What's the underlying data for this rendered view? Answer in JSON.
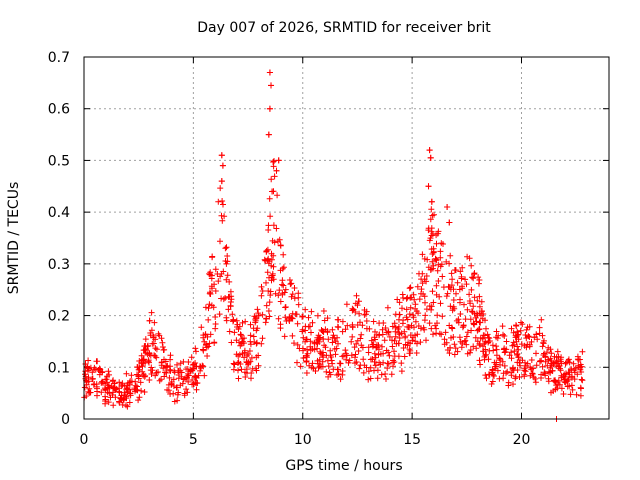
{
  "chart_data": {
    "type": "scatter",
    "title": "Day 007 of 2026, SRMTID for receiver brit",
    "xlabel": "GPS time / hours",
    "ylabel": "SRMTID / TECUs",
    "xlim": [
      0,
      24
    ],
    "ylim": [
      0,
      0.7
    ],
    "x_ticks": [
      "0",
      "5",
      "10",
      "15",
      "20"
    ],
    "y_ticks": [
      "0",
      "0.1",
      "0.2",
      "0.3",
      "0.4",
      "0.5",
      "0.6",
      "0.7"
    ],
    "grid": true,
    "marker": "+",
    "color": "#ff0000",
    "series": [
      {
        "name": "SRMTID",
        "profile_x": [
          0,
          0.3,
          0.6,
          0.9,
          1.2,
          1.5,
          1.8,
          2.2,
          2.6,
          2.9,
          3.1,
          3.4,
          3.7,
          4.0,
          4.4,
          4.8,
          5.1,
          5.4,
          5.7,
          6.0,
          6.2,
          6.4,
          6.6,
          6.8,
          7.1,
          7.4,
          7.7,
          8.0,
          8.3,
          8.5,
          8.7,
          8.9,
          9.1,
          9.4,
          9.7,
          10.0,
          10.5,
          11.0,
          11.5,
          12.0,
          12.5,
          13.0,
          13.5,
          14.0,
          14.5,
          15.0,
          15.3,
          15.6,
          15.8,
          16.0,
          16.2,
          16.5,
          16.8,
          17.1,
          17.4,
          17.7,
          18.0,
          18.3,
          18.6,
          19.0,
          19.5,
          20.0,
          20.5,
          21.0,
          21.3,
          21.6,
          22.0,
          22.4,
          22.8
        ],
        "profile_y": [
          0.09,
          0.085,
          0.075,
          0.065,
          0.06,
          0.055,
          0.055,
          0.06,
          0.085,
          0.12,
          0.14,
          0.12,
          0.095,
          0.08,
          0.075,
          0.08,
          0.09,
          0.13,
          0.19,
          0.26,
          0.33,
          0.3,
          0.2,
          0.15,
          0.14,
          0.14,
          0.15,
          0.16,
          0.24,
          0.33,
          0.38,
          0.3,
          0.23,
          0.2,
          0.19,
          0.15,
          0.14,
          0.14,
          0.14,
          0.15,
          0.17,
          0.14,
          0.13,
          0.15,
          0.17,
          0.19,
          0.2,
          0.25,
          0.3,
          0.28,
          0.26,
          0.23,
          0.22,
          0.21,
          0.22,
          0.22,
          0.21,
          0.14,
          0.11,
          0.12,
          0.13,
          0.13,
          0.13,
          0.13,
          0.1,
          0.09,
          0.08,
          0.08,
          0.09
        ],
        "peaks": [
          {
            "x": 3.0,
            "y": 0.19
          },
          {
            "x": 6.3,
            "y": 0.51
          },
          {
            "x": 6.35,
            "y": 0.49
          },
          {
            "x": 6.3,
            "y": 0.46
          },
          {
            "x": 8.5,
            "y": 0.67
          },
          {
            "x": 8.55,
            "y": 0.645
          },
          {
            "x": 8.5,
            "y": 0.6
          },
          {
            "x": 8.45,
            "y": 0.55
          },
          {
            "x": 8.9,
            "y": 0.5
          },
          {
            "x": 8.8,
            "y": 0.48
          },
          {
            "x": 8.6,
            "y": 0.44
          },
          {
            "x": 15.8,
            "y": 0.52
          },
          {
            "x": 15.85,
            "y": 0.505
          },
          {
            "x": 15.75,
            "y": 0.45
          },
          {
            "x": 15.9,
            "y": 0.42
          },
          {
            "x": 16.6,
            "y": 0.41
          },
          {
            "x": 16.7,
            "y": 0.38
          },
          {
            "x": 21.6,
            "y": 0.0
          }
        ]
      }
    ]
  }
}
